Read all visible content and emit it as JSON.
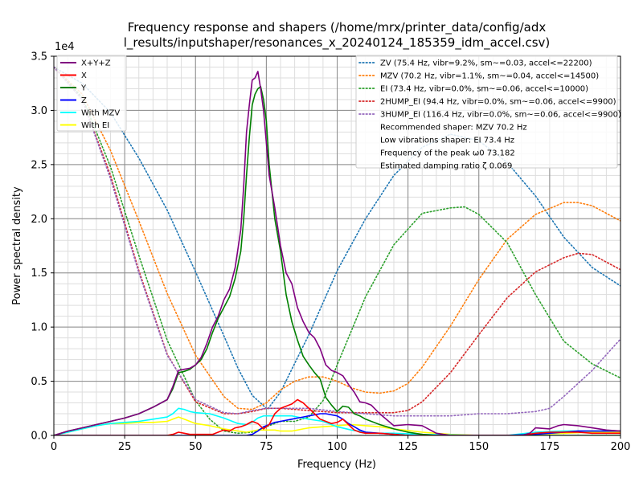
{
  "chart_data": {
    "type": "line",
    "title_line1": "Frequency response and shapers (/home/mrx/printer_data/config/adx",
    "title_line2": "l_results/inputshaper/resonances_x_20240124_185359_idm_accel.csv)",
    "xlabel": "Frequency (Hz)",
    "ylabel": "Power spectral density",
    "y_multiplier_label": "1e4",
    "xlim": [
      0,
      200
    ],
    "ylim": [
      0,
      35000
    ],
    "xticks": [
      0,
      25,
      50,
      75,
      100,
      125,
      150,
      175,
      200
    ],
    "xtick_labels": [
      "0",
      "25",
      "50",
      "75",
      "100",
      "125",
      "150",
      "175",
      "200"
    ],
    "yticks": [
      0,
      5000,
      10000,
      15000,
      20000,
      25000,
      30000,
      35000
    ],
    "ytick_labels": [
      "0.0",
      "0.5",
      "1.0",
      "1.5",
      "2.0",
      "2.5",
      "3.0",
      "3.5"
    ],
    "grid": true,
    "legend_left_placement": "top-left",
    "legend_right_placement": "top-right",
    "series": [
      {
        "name": "X+Y+Z",
        "color": "#800080",
        "style": "solid",
        "x": [
          0,
          5,
          10,
          15,
          20,
          25,
          30,
          35,
          40,
          42,
          44,
          46,
          48,
          50,
          52,
          54,
          56,
          58,
          60,
          62,
          64,
          66,
          67,
          68,
          69,
          70,
          71,
          72,
          73,
          74,
          75,
          76,
          78,
          80,
          82,
          84,
          86,
          88,
          90,
          92,
          94,
          96,
          98,
          100,
          102,
          104,
          106,
          108,
          110,
          112,
          115,
          120,
          125,
          130,
          135,
          140,
          145,
          150,
          155,
          160,
          165,
          168,
          170,
          175,
          178,
          180,
          185,
          190,
          195,
          200
        ],
        "y": [
          0,
          400,
          700,
          1000,
          1300,
          1600,
          2000,
          2600,
          3300,
          4500,
          6000,
          6100,
          6200,
          6500,
          7200,
          8500,
          10000,
          11000,
          12500,
          13500,
          15500,
          19000,
          23000,
          28000,
          30500,
          32800,
          33000,
          33600,
          32000,
          30000,
          27000,
          24000,
          21000,
          17500,
          15000,
          14000,
          11800,
          10500,
          9500,
          9000,
          8000,
          6500,
          6000,
          5800,
          5500,
          4700,
          4000,
          3100,
          3000,
          2800,
          2000,
          900,
          1000,
          900,
          200,
          0,
          0,
          0,
          0,
          0,
          0,
          200,
          700,
          600,
          900,
          1000,
          900,
          700,
          500,
          400
        ]
      },
      {
        "name": "X",
        "color": "#ff0000",
        "style": "solid",
        "x": [
          0,
          5,
          10,
          15,
          20,
          25,
          30,
          35,
          40,
          42,
          44,
          46,
          48,
          50,
          52,
          54,
          56,
          58,
          60,
          62,
          64,
          66,
          68,
          70,
          72,
          74,
          76,
          78,
          80,
          82,
          84,
          86,
          88,
          90,
          92,
          94,
          96,
          98,
          100,
          102,
          104,
          106,
          108,
          110,
          115,
          120,
          125,
          130,
          135,
          140,
          145,
          150,
          155,
          160,
          165,
          170,
          175,
          180,
          185,
          190,
          195,
          200
        ],
        "y": [
          0,
          0,
          0,
          0,
          0,
          0,
          0,
          0,
          0,
          100,
          300,
          200,
          100,
          100,
          100,
          100,
          100,
          300,
          500,
          400,
          700,
          800,
          1000,
          1300,
          1100,
          600,
          1000,
          2000,
          2500,
          2700,
          2900,
          3300,
          3000,
          2500,
          2000,
          1500,
          1300,
          1100,
          1200,
          1500,
          1000,
          500,
          300,
          200,
          200,
          100,
          0,
          0,
          0,
          0,
          0,
          0,
          0,
          0,
          0,
          200,
          300,
          300,
          300,
          200,
          200,
          200
        ]
      },
      {
        "name": "Y",
        "color": "#008000",
        "style": "solid",
        "x": [
          0,
          5,
          10,
          15,
          20,
          25,
          30,
          35,
          40,
          42,
          44,
          46,
          48,
          50,
          52,
          54,
          56,
          58,
          60,
          62,
          64,
          66,
          67,
          68,
          69,
          70,
          71,
          72,
          73,
          74,
          75,
          76,
          78,
          80,
          82,
          84,
          86,
          88,
          90,
          92,
          94,
          96,
          98,
          100,
          102,
          104,
          106,
          108,
          110,
          115,
          120,
          125,
          130,
          135,
          140,
          145,
          150,
          155,
          160,
          165,
          170,
          175,
          180,
          185,
          190,
          195,
          200
        ],
        "y": [
          0,
          400,
          700,
          1000,
          1300,
          1600,
          2000,
          2600,
          3300,
          4300,
          5800,
          5900,
          6100,
          6500,
          7000,
          8000,
          9500,
          10800,
          11800,
          12800,
          14500,
          17000,
          20000,
          24000,
          27500,
          30500,
          31500,
          32000,
          32200,
          31000,
          29000,
          25000,
          20000,
          17000,
          13000,
          10500,
          8800,
          7300,
          6500,
          5800,
          5200,
          3500,
          2800,
          2200,
          2700,
          2600,
          2000,
          1800,
          1500,
          1000,
          600,
          300,
          100,
          0,
          0,
          0,
          0,
          0,
          0,
          0,
          0,
          0,
          0,
          0,
          0,
          0,
          0
        ]
      },
      {
        "name": "Z",
        "color": "#0000ff",
        "style": "solid",
        "x": [
          0,
          5,
          10,
          15,
          20,
          25,
          30,
          35,
          40,
          45,
          50,
          55,
          60,
          65,
          68,
          70,
          72,
          74,
          76,
          78,
          80,
          82,
          84,
          86,
          88,
          90,
          92,
          94,
          96,
          98,
          100,
          102,
          104,
          106,
          108,
          110,
          115,
          120,
          125,
          130,
          135,
          140,
          145,
          150,
          160,
          170,
          175,
          180,
          185,
          190,
          195,
          200
        ],
        "y": [
          0,
          0,
          0,
          0,
          0,
          0,
          0,
          0,
          0,
          0,
          0,
          0,
          0,
          0,
          0,
          100,
          400,
          800,
          1000,
          1200,
          1300,
          1400,
          1500,
          1600,
          1700,
          1800,
          1900,
          2000,
          2000,
          1900,
          1800,
          1500,
          1100,
          800,
          500,
          300,
          200,
          100,
          0,
          0,
          0,
          0,
          0,
          0,
          0,
          100,
          200,
          300,
          400,
          400,
          400,
          400
        ]
      },
      {
        "name": "With MZV",
        "color": "#00ffff",
        "style": "solid",
        "x": [
          0,
          5,
          10,
          15,
          20,
          25,
          30,
          35,
          40,
          42,
          44,
          46,
          48,
          50,
          55,
          60,
          65,
          68,
          70,
          72,
          74,
          76,
          78,
          80,
          82,
          84,
          86,
          88,
          90,
          95,
          100,
          105,
          110,
          115,
          120,
          130,
          140,
          150,
          160,
          170,
          180,
          190,
          200
        ],
        "y": [
          0,
          300,
          600,
          900,
          1100,
          1200,
          1300,
          1500,
          1700,
          2000,
          2500,
          2400,
          2200,
          2100,
          2000,
          1600,
          1100,
          1000,
          1200,
          1600,
          1800,
          1800,
          1800,
          1800,
          1800,
          1800,
          1700,
          1600,
          1500,
          1300,
          800,
          500,
          300,
          200,
          200,
          100,
          50,
          0,
          0,
          300,
          400,
          400,
          400
        ]
      },
      {
        "name": "With EI",
        "color": "#ffff00",
        "style": "solid",
        "x": [
          0,
          5,
          10,
          15,
          20,
          25,
          30,
          35,
          40,
          42,
          44,
          46,
          48,
          50,
          55,
          60,
          65,
          68,
          70,
          72,
          74,
          76,
          78,
          80,
          82,
          84,
          86,
          88,
          90,
          95,
          100,
          105,
          110,
          115,
          120,
          130,
          140,
          150,
          160,
          170,
          180,
          190,
          200
        ],
        "y": [
          0,
          300,
          600,
          900,
          1100,
          1100,
          1200,
          1200,
          1300,
          1500,
          1700,
          1500,
          1300,
          1100,
          900,
          600,
          400,
          300,
          400,
          500,
          500,
          500,
          500,
          400,
          400,
          400,
          500,
          600,
          700,
          800,
          900,
          1000,
          900,
          800,
          600,
          300,
          100,
          0,
          0,
          100,
          200,
          300,
          300
        ]
      },
      {
        "name": "ZV (75.4 Hz, vibr=9.2%, sm~=0.03, accel<=22200)",
        "color": "#1f77b4",
        "style": "dotted",
        "x": [
          0,
          10,
          20,
          30,
          40,
          50,
          60,
          65,
          70,
          75.4,
          80,
          90,
          100,
          110,
          120,
          130,
          140,
          150,
          160,
          170,
          180,
          190,
          200
        ],
        "y": [
          34000,
          32500,
          29800,
          25600,
          20800,
          15100,
          9200,
          6200,
          3700,
          2400,
          4000,
          9300,
          15200,
          20000,
          24000,
          26600,
          27800,
          27200,
          25200,
          22100,
          18300,
          15500,
          13800
        ]
      },
      {
        "name": "MZV (70.2 Hz, vibr=1.1%, sm~=0.04, accel<=14500)",
        "color": "#ff7f0e",
        "style": "dotted",
        "x": [
          0,
          10,
          20,
          30,
          40,
          50,
          60,
          65,
          70,
          75,
          80,
          85,
          90,
          95,
          100,
          105,
          110,
          115,
          120,
          125,
          130,
          140,
          150,
          160,
          170,
          180,
          185,
          190,
          200
        ],
        "y": [
          34000,
          31500,
          26300,
          19800,
          13100,
          7400,
          3600,
          2500,
          2400,
          3000,
          4200,
          5000,
          5400,
          5400,
          5000,
          4400,
          4000,
          3900,
          4100,
          4800,
          6300,
          10100,
          14400,
          18100,
          20400,
          21500,
          21500,
          21200,
          19800
        ]
      },
      {
        "name": "EI (73.4 Hz, vibr=0.0%, sm~=0.06, accel<=10000)",
        "color": "#2ca02c",
        "style": "dotted",
        "x": [
          0,
          10,
          20,
          30,
          40,
          50,
          55,
          60,
          65,
          70,
          75,
          80,
          85,
          90,
          95,
          100,
          110,
          120,
          130,
          140,
          145,
          150,
          160,
          170,
          180,
          190,
          200
        ],
        "y": [
          34000,
          31200,
          24800,
          16600,
          8800,
          3200,
          1500,
          400,
          200,
          300,
          800,
          1300,
          1300,
          1700,
          3200,
          6500,
          12800,
          17600,
          20500,
          21000,
          21100,
          20400,
          17800,
          13000,
          8700,
          6600,
          5300
        ]
      },
      {
        "name": "2HUMP_EI (94.4 Hz, vibr=0.0%, sm~=0.06, accel<=9900)",
        "color": "#d62728",
        "style": "dotted",
        "x": [
          0,
          10,
          20,
          30,
          40,
          50,
          60,
          65,
          70,
          75,
          80,
          90,
          100,
          110,
          120,
          125,
          130,
          140,
          150,
          160,
          170,
          180,
          185,
          190,
          200
        ],
        "y": [
          34000,
          31000,
          24000,
          15200,
          7500,
          3100,
          2000,
          2000,
          2200,
          2500,
          2500,
          2300,
          2100,
          2100,
          2100,
          2300,
          3100,
          5800,
          9300,
          12700,
          15100,
          16400,
          16800,
          16700,
          15300
        ]
      },
      {
        "name": "3HUMP_EI (116.4 Hz, vibr=0.0%, sm~=0.06, accel<=9900)",
        "color": "#9467bd",
        "style": "dotted",
        "x": [
          0,
          10,
          20,
          30,
          40,
          50,
          60,
          65,
          70,
          75,
          80,
          90,
          100,
          110,
          120,
          130,
          140,
          150,
          160,
          170,
          175,
          180,
          190,
          200
        ],
        "y": [
          34000,
          31000,
          23700,
          15000,
          7400,
          3300,
          2100,
          2000,
          2300,
          2500,
          2500,
          2500,
          2200,
          2000,
          1800,
          1800,
          1800,
          2000,
          2000,
          2200,
          2500,
          3600,
          6000,
          8900
        ]
      }
    ],
    "annotations": [
      "Recommended shaper: MZV 70.2 Hz",
      "Low vibrations shaper: EI 73.4 Hz",
      "Frequency of the peak ω0 73.182",
      "Estimated damping ratio ζ 0.069"
    ]
  }
}
